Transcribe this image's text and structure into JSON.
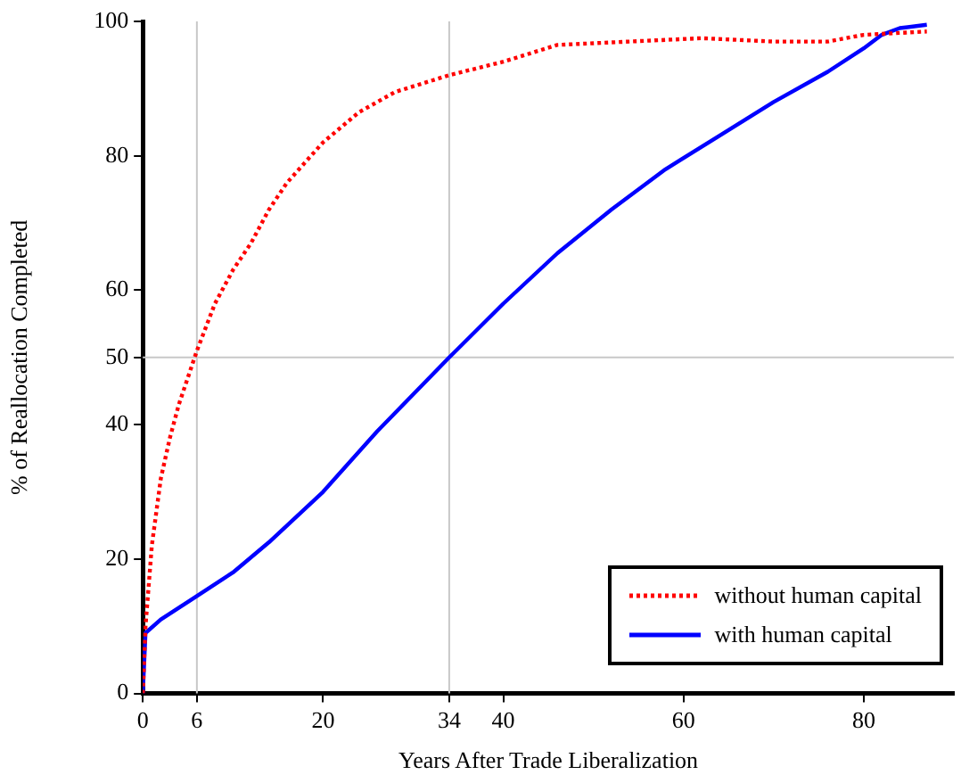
{
  "chart_data": {
    "type": "line",
    "xlabel": "Years After Trade Liberalization",
    "ylabel": "% of Reallocation Completed",
    "xlim": [
      0,
      90
    ],
    "ylim": [
      0,
      100
    ],
    "xticks": [
      0,
      6,
      20,
      34,
      40,
      60,
      80
    ],
    "yticks": [
      0,
      20,
      40,
      50,
      60,
      80,
      100
    ],
    "grid": false,
    "legend": "bottom right",
    "marker": "none",
    "ref_lines": [
      {
        "axis": "x",
        "value": 6,
        "color": "#c8c8c8"
      },
      {
        "axis": "x",
        "value": 34,
        "color": "#c8c8c8"
      },
      {
        "axis": "y",
        "value": 50,
        "color": "#c8c8c8"
      }
    ],
    "series": [
      {
        "name": "without human capital",
        "color": "#ff0000",
        "line_style": "dotted",
        "x": [
          0,
          0.3,
          1,
          2,
          3,
          4,
          6,
          8,
          10,
          12,
          14,
          16,
          20,
          24,
          28,
          34,
          40,
          46,
          54,
          62,
          70,
          76,
          80,
          87
        ],
        "values": [
          0,
          10,
          22,
          32,
          38,
          43,
          51,
          58,
          63,
          67,
          72,
          76,
          82,
          86.5,
          89.5,
          92,
          94,
          96.5,
          97,
          97.5,
          97,
          97,
          98,
          98.5
        ]
      },
      {
        "name": "with human capital",
        "color": "#0000ff",
        "line_style": "solid",
        "x": [
          0,
          0.3,
          2,
          6,
          10,
          14,
          20,
          26,
          34,
          40,
          46,
          52,
          58,
          64,
          70,
          76,
          80,
          82,
          84,
          87
        ],
        "values": [
          0,
          9,
          11,
          14.5,
          18,
          22.5,
          30,
          39,
          50,
          58,
          65.5,
          72,
          78,
          83,
          88,
          92.5,
          96,
          98,
          99,
          99.5
        ]
      }
    ]
  }
}
